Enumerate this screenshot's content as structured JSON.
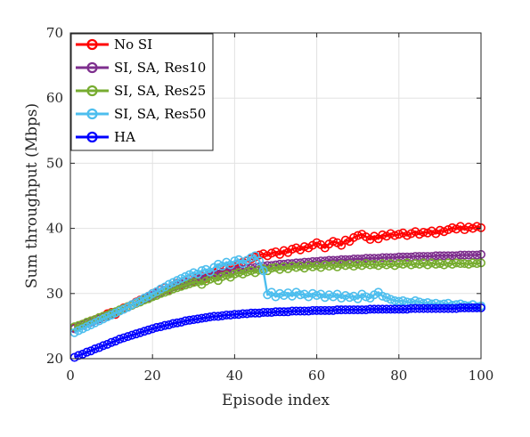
{
  "chart_data": {
    "type": "line",
    "xlabel": "Episode index",
    "ylabel": "Sum throughput (Mbps)",
    "xlim": [
      0,
      100
    ],
    "ylim": [
      20,
      70
    ],
    "x_ticks": [
      0,
      20,
      40,
      60,
      80,
      100
    ],
    "y_ticks": [
      20,
      30,
      40,
      50,
      60,
      70
    ],
    "grid": true,
    "legend_position": "top-left",
    "x": [
      1,
      2,
      3,
      4,
      5,
      6,
      7,
      8,
      9,
      10,
      11,
      12,
      13,
      14,
      15,
      16,
      17,
      18,
      19,
      20,
      21,
      22,
      23,
      24,
      25,
      26,
      27,
      28,
      29,
      30,
      31,
      32,
      33,
      34,
      35,
      36,
      37,
      38,
      39,
      40,
      41,
      42,
      43,
      44,
      45,
      46,
      47,
      48,
      49,
      50,
      51,
      52,
      53,
      54,
      55,
      56,
      57,
      58,
      59,
      60,
      61,
      62,
      63,
      64,
      65,
      66,
      67,
      68,
      69,
      70,
      71,
      72,
      73,
      74,
      75,
      76,
      77,
      78,
      79,
      80,
      81,
      82,
      83,
      84,
      85,
      86,
      87,
      88,
      89,
      90,
      91,
      92,
      93,
      94,
      95,
      96,
      97,
      98,
      99,
      100
    ],
    "series": [
      {
        "name": "No SI",
        "color": "#ff0000",
        "values": [
          24.8,
          25.0,
          25.3,
          25.5,
          25.8,
          26.0,
          26.3,
          26.5,
          26.9,
          27.1,
          26.8,
          27.4,
          27.8,
          28.0,
          28.3,
          28.7,
          29.0,
          29.2,
          29.6,
          30.0,
          30.2,
          30.6,
          30.9,
          30.5,
          31.2,
          31.6,
          31.3,
          31.9,
          32.2,
          31.8,
          32.5,
          32.7,
          32.3,
          33.0,
          33.2,
          33.5,
          33.1,
          33.8,
          34.0,
          34.2,
          34.5,
          34.8,
          35.0,
          35.3,
          35.6,
          35.9,
          36.1,
          35.8,
          36.2,
          36.4,
          36.0,
          36.6,
          36.3,
          36.8,
          37.0,
          36.7,
          37.2,
          37.0,
          37.4,
          37.8,
          37.5,
          37.0,
          37.6,
          38.0,
          37.8,
          37.4,
          38.2,
          38.0,
          38.6,
          38.9,
          39.1,
          38.7,
          38.3,
          38.8,
          38.4,
          39.0,
          38.8,
          39.2,
          38.9,
          39.1,
          39.3,
          38.9,
          39.2,
          39.5,
          39.1,
          39.4,
          39.3,
          39.6,
          39.2,
          39.7,
          39.5,
          39.8,
          40.1,
          39.9,
          40.3,
          39.8,
          40.2,
          40.0,
          40.3,
          40.1
        ]
      },
      {
        "name": "SI, SA, Res10",
        "color": "#7e2f8e",
        "values": [
          24.6,
          24.9,
          25.1,
          25.4,
          25.6,
          25.9,
          26.1,
          26.4,
          26.6,
          26.9,
          27.1,
          27.4,
          27.6,
          27.9,
          28.2,
          28.5,
          28.8,
          29.1,
          29.4,
          29.7,
          30.0,
          30.2,
          30.5,
          30.7,
          31.0,
          31.2,
          31.4,
          31.6,
          31.8,
          32.0,
          32.2,
          32.4,
          32.6,
          32.7,
          32.9,
          33.0,
          33.2,
          33.3,
          33.4,
          33.5,
          33.6,
          33.7,
          33.8,
          33.9,
          34.0,
          34.1,
          34.2,
          34.3,
          34.3,
          34.4,
          34.5,
          34.5,
          34.6,
          34.6,
          34.7,
          34.7,
          34.8,
          34.8,
          34.9,
          34.9,
          35.0,
          35.0,
          35.1,
          35.1,
          35.1,
          35.2,
          35.2,
          35.2,
          35.3,
          35.3,
          35.3,
          35.4,
          35.4,
          35.4,
          35.4,
          35.5,
          35.5,
          35.5,
          35.5,
          35.6,
          35.6,
          35.6,
          35.6,
          35.7,
          35.7,
          35.7,
          35.7,
          35.7,
          35.8,
          35.8,
          35.8,
          35.8,
          35.8,
          35.8,
          35.9,
          35.9,
          35.9,
          35.9,
          35.9,
          36.0
        ]
      },
      {
        "name": "SI, SA, Res25",
        "color": "#77ac30",
        "values": [
          24.9,
          25.1,
          25.3,
          25.6,
          25.8,
          26.0,
          26.3,
          26.5,
          26.7,
          27.0,
          27.2,
          27.5,
          27.7,
          28.0,
          28.2,
          28.5,
          28.7,
          29.0,
          29.2,
          29.5,
          29.7,
          30.0,
          30.2,
          30.4,
          30.7,
          30.9,
          31.1,
          31.3,
          31.5,
          31.7,
          31.8,
          31.4,
          31.9,
          32.2,
          32.4,
          32.0,
          32.6,
          32.8,
          32.5,
          33.0,
          33.2,
          33.0,
          33.3,
          33.5,
          33.2,
          33.6,
          33.8,
          33.5,
          33.9,
          34.0,
          33.7,
          34.1,
          33.8,
          34.2,
          34.0,
          34.2,
          33.9,
          34.3,
          34.1,
          34.3,
          34.0,
          34.4,
          34.2,
          34.4,
          34.1,
          34.5,
          34.3,
          34.5,
          34.2,
          34.5,
          34.3,
          34.6,
          34.4,
          34.5,
          34.3,
          34.6,
          34.4,
          34.6,
          34.3,
          34.6,
          34.5,
          34.7,
          34.4,
          34.6,
          34.5,
          34.7,
          34.4,
          34.7,
          34.5,
          34.6,
          34.4,
          34.7,
          34.5,
          34.7,
          34.6,
          34.6,
          34.5,
          34.7,
          34.6,
          34.7
        ]
      },
      {
        "name": "SI, SA, Res50",
        "color": "#4dbeee",
        "values": [
          24.0,
          24.3,
          24.6,
          24.9,
          25.2,
          25.5,
          25.8,
          26.1,
          26.4,
          26.7,
          27.0,
          27.3,
          27.6,
          27.9,
          28.3,
          28.6,
          28.9,
          29.3,
          29.6,
          30.0,
          30.3,
          30.7,
          31.0,
          31.4,
          31.7,
          32.0,
          32.3,
          32.6,
          32.9,
          33.2,
          33.0,
          33.5,
          33.7,
          33.3,
          34.0,
          34.5,
          34.2,
          34.8,
          34.4,
          35.0,
          35.2,
          34.6,
          35.1,
          35.5,
          35.8,
          35.0,
          33.5,
          29.8,
          30.2,
          29.5,
          30.0,
          29.7,
          30.1,
          29.6,
          30.2,
          29.8,
          29.9,
          29.5,
          30.0,
          29.7,
          29.9,
          29.4,
          29.8,
          29.5,
          29.9,
          29.3,
          29.7,
          29.4,
          29.6,
          29.2,
          29.9,
          29.5,
          29.3,
          29.8,
          30.2,
          29.6,
          29.4,
          29.1,
          28.9,
          28.8,
          28.9,
          28.7,
          28.6,
          28.9,
          28.7,
          28.5,
          28.6,
          28.4,
          28.5,
          28.3,
          28.4,
          28.5,
          28.2,
          28.3,
          28.4,
          28.2,
          28.1,
          28.3,
          28.0,
          28.1
        ]
      },
      {
        "name": "HA",
        "color": "#0000ff",
        "values": [
          20.2,
          20.5,
          20.7,
          21.0,
          21.2,
          21.5,
          21.7,
          22.0,
          22.2,
          22.5,
          22.7,
          23.0,
          23.2,
          23.4,
          23.6,
          23.8,
          24.0,
          24.2,
          24.4,
          24.6,
          24.8,
          24.9,
          25.1,
          25.2,
          25.4,
          25.5,
          25.6,
          25.8,
          25.9,
          26.0,
          26.1,
          26.2,
          26.3,
          26.4,
          26.5,
          26.5,
          26.6,
          26.7,
          26.7,
          26.8,
          26.8,
          26.9,
          26.9,
          27.0,
          27.0,
          27.0,
          27.1,
          27.1,
          27.1,
          27.2,
          27.2,
          27.2,
          27.2,
          27.3,
          27.3,
          27.3,
          27.3,
          27.3,
          27.4,
          27.4,
          27.4,
          27.4,
          27.4,
          27.4,
          27.5,
          27.5,
          27.5,
          27.5,
          27.5,
          27.5,
          27.5,
          27.5,
          27.6,
          27.6,
          27.6,
          27.6,
          27.6,
          27.6,
          27.6,
          27.6,
          27.6,
          27.6,
          27.7,
          27.7,
          27.7,
          27.7,
          27.7,
          27.7,
          27.7,
          27.7,
          27.7,
          27.7,
          27.7,
          27.7,
          27.8,
          27.8,
          27.8,
          27.8,
          27.8,
          27.8
        ]
      }
    ]
  }
}
